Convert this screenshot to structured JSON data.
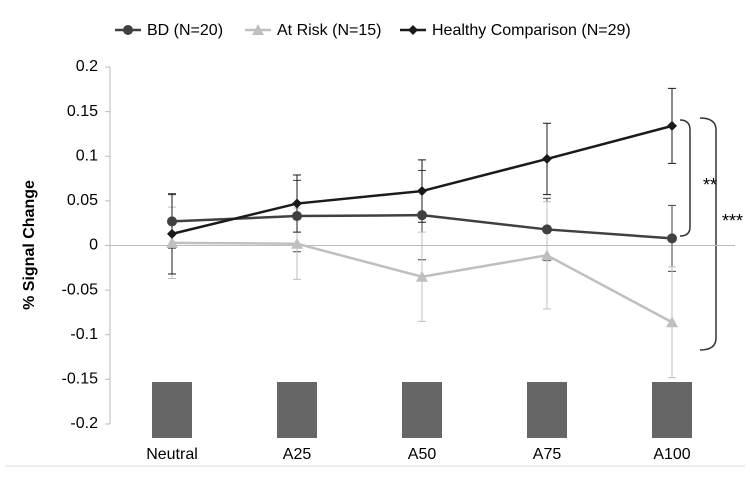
{
  "chart_data": {
    "type": "line",
    "ylabel": "% Signal Change",
    "categories": [
      "Neutral",
      "A25",
      "A50",
      "A75",
      "A100"
    ],
    "series": [
      {
        "name": "BD (N=20)",
        "color": "#404040",
        "marker": "circle",
        "values": [
          0.027,
          0.033,
          0.034,
          0.018,
          0.008
        ],
        "errors": [
          0.03,
          0.04,
          0.05,
          0.035,
          0.037
        ]
      },
      {
        "name": "At Risk (N=15)",
        "color": "#bfbfbf",
        "marker": "triangle",
        "values": [
          0.003,
          0.002,
          -0.035,
          -0.011,
          -0.086
        ],
        "errors": [
          0.04,
          0.04,
          0.05,
          0.06,
          0.062
        ]
      },
      {
        "name": "Healthy Comparison (N=29)",
        "color": "#1a1a1a",
        "marker": "diamond",
        "values": [
          0.013,
          0.047,
          0.061,
          0.097,
          0.134
        ],
        "errors": [
          0.045,
          0.032,
          0.035,
          0.04,
          0.042
        ]
      }
    ],
    "ylim": [
      -0.2,
      0.2
    ],
    "yticks": [
      -0.2,
      -0.15,
      -0.1,
      -0.05,
      0,
      0.05,
      0.1,
      0.15,
      0.2
    ],
    "annotations": [
      "**",
      "***"
    ]
  }
}
